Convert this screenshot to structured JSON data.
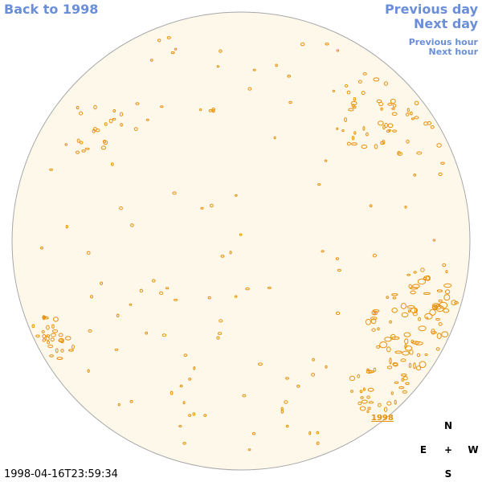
{
  "navigation": {
    "back": "Back to 1998",
    "previous_day": "Previous day",
    "next_day": "Next day",
    "previous_hour": "Previous hour",
    "next_hour": "Next hour"
  },
  "disk_label": "1998",
  "compass": {
    "north": "N",
    "east": "E",
    "center": "+",
    "west": "W",
    "south": "S"
  },
  "timestamp": "1998-04-16T23:59:34"
}
